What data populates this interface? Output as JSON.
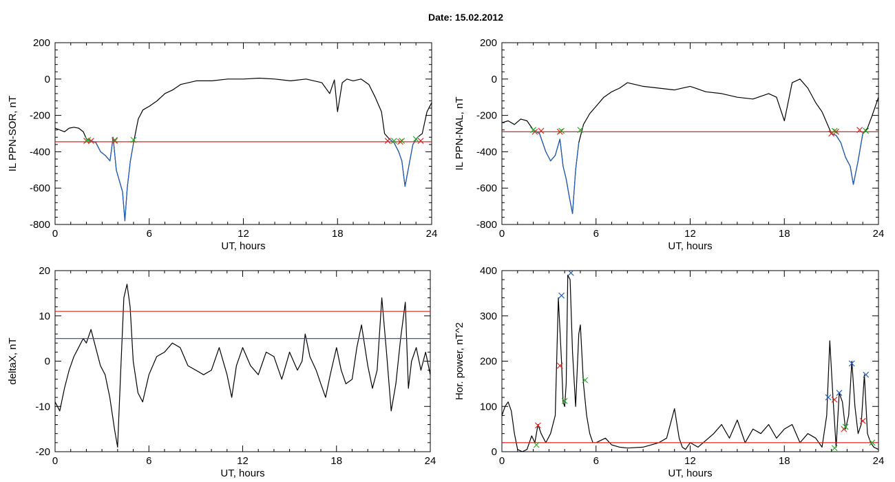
{
  "title": "Date:  15.02.2012",
  "chart_data": [
    {
      "type": "line",
      "ylabel": "IL PPN-SOR, nT",
      "xlabel": "UT, hours",
      "xlim": [
        0,
        24
      ],
      "ylim": [
        -800,
        200
      ],
      "xticks": [
        0,
        6,
        12,
        18,
        24
      ],
      "yticks": [
        -800,
        -600,
        -400,
        -200,
        0,
        200
      ],
      "series": [
        {
          "color": "#000000",
          "x": [
            0,
            0.3,
            0.6,
            0.9,
            1.2,
            1.5,
            1.8,
            2.0,
            2.3,
            2.6,
            2.9,
            3.2,
            3.5,
            3.7,
            3.9,
            4.1,
            4.3,
            4.45,
            4.6,
            4.8,
            5.0,
            5.3,
            5.6,
            6.0,
            6.5,
            7.0,
            7.5,
            8.0,
            9.0,
            10.0,
            11.0,
            12.0,
            13.0,
            14.0,
            15.0,
            16.0,
            17.0,
            17.5,
            17.8,
            18.0,
            18.3,
            18.6,
            19.0,
            19.5,
            20.0,
            20.4,
            20.8,
            21.0,
            21.3,
            21.6,
            21.9,
            22.1,
            22.3,
            22.5,
            22.8,
            23.1,
            23.4,
            23.7,
            24.0
          ],
          "y": [
            -270,
            -280,
            -290,
            -270,
            -265,
            -270,
            -290,
            -330,
            -340,
            -350,
            -400,
            -420,
            -450,
            -320,
            -500,
            -560,
            -620,
            -780,
            -600,
            -450,
            -350,
            -220,
            -170,
            -150,
            -120,
            -80,
            -60,
            -30,
            -10,
            -10,
            0,
            0,
            5,
            0,
            -10,
            0,
            -20,
            -80,
            -5,
            -180,
            -20,
            0,
            -10,
            0,
            -30,
            -100,
            -180,
            -300,
            -330,
            -350,
            -400,
            -450,
            -590,
            -500,
            -360,
            -320,
            -300,
            -180,
            -130
          ]
        },
        {
          "color": "#2060c0",
          "x": [
            2.0,
            2.3,
            2.6,
            2.9,
            3.2,
            3.5,
            3.7,
            3.9,
            4.1,
            4.3,
            4.45,
            4.6,
            4.8,
            5.0
          ],
          "y": [
            -330,
            -340,
            -350,
            -400,
            -420,
            -450,
            -320,
            -500,
            -560,
            -620,
            -780,
            -600,
            -450,
            -350
          ]
        },
        {
          "color": "#2060c0",
          "x": [
            21.3,
            21.6,
            21.9,
            22.1,
            22.3,
            22.5,
            22.8,
            23.1
          ],
          "y": [
            -330,
            -350,
            -400,
            -450,
            -590,
            -500,
            -360,
            -320
          ]
        }
      ],
      "hlines": [
        {
          "y": -345,
          "color": "#dd2222"
        }
      ],
      "markers": [
        {
          "x": 2.0,
          "y": -340,
          "color": "#dd2222"
        },
        {
          "x": 2.3,
          "y": -340,
          "color": "#dd2222"
        },
        {
          "x": 3.8,
          "y": -340,
          "color": "#dd2222"
        },
        {
          "x": 21.2,
          "y": -340,
          "color": "#dd2222"
        },
        {
          "x": 22.0,
          "y": -345,
          "color": "#dd2222"
        },
        {
          "x": 23.3,
          "y": -340,
          "color": "#dd2222"
        },
        {
          "x": 2.1,
          "y": -335,
          "color": "#22aa22"
        },
        {
          "x": 3.8,
          "y": -335,
          "color": "#22aa22"
        },
        {
          "x": 5.0,
          "y": -335,
          "color": "#22aa22"
        },
        {
          "x": 21.6,
          "y": -340,
          "color": "#22aa22"
        },
        {
          "x": 22.1,
          "y": -340,
          "color": "#22aa22"
        },
        {
          "x": 23.0,
          "y": -330,
          "color": "#22aa22"
        }
      ]
    },
    {
      "type": "line",
      "ylabel": "IL PPN-NAL, nT",
      "xlabel": "UT, hours",
      "xlim": [
        0,
        24
      ],
      "ylim": [
        -800,
        200
      ],
      "xticks": [
        0,
        6,
        12,
        18,
        24
      ],
      "yticks": [
        -800,
        -600,
        -400,
        -200,
        0,
        200
      ],
      "series": [
        {
          "color": "#000000",
          "x": [
            0,
            0.4,
            0.8,
            1.2,
            1.6,
            2.0,
            2.4,
            2.8,
            3.1,
            3.4,
            3.7,
            3.9,
            4.1,
            4.3,
            4.5,
            4.7,
            4.9,
            5.2,
            5.6,
            6.0,
            6.5,
            7.0,
            7.5,
            8.0,
            9.0,
            10.0,
            11.0,
            12.0,
            13.0,
            14.0,
            15.0,
            16.0,
            17.0,
            17.5,
            18.0,
            18.5,
            19.0,
            19.5,
            20.0,
            20.4,
            20.8,
            21.0,
            21.3,
            21.6,
            21.9,
            22.2,
            22.4,
            22.7,
            23.0,
            23.3,
            23.6,
            24.0
          ],
          "y": [
            -240,
            -230,
            -250,
            -220,
            -230,
            -280,
            -300,
            -400,
            -450,
            -420,
            -330,
            -480,
            -550,
            -650,
            -740,
            -500,
            -350,
            -250,
            -190,
            -150,
            -100,
            -70,
            -50,
            -20,
            -40,
            -50,
            -60,
            -40,
            -70,
            -80,
            -100,
            -110,
            -80,
            -100,
            -230,
            -20,
            0,
            -50,
            -130,
            -180,
            -260,
            -300,
            -310,
            -350,
            -430,
            -480,
            -580,
            -450,
            -300,
            -270,
            -200,
            -100
          ]
        },
        {
          "color": "#2060c0",
          "x": [
            2.0,
            2.4,
            2.8,
            3.1,
            3.4,
            3.7,
            3.9,
            4.1,
            4.3,
            4.5,
            4.7,
            4.9
          ],
          "y": [
            -280,
            -300,
            -400,
            -450,
            -420,
            -330,
            -480,
            -550,
            -650,
            -740,
            -500,
            -350
          ]
        },
        {
          "color": "#2060c0",
          "x": [
            21.0,
            21.3,
            21.6,
            21.9,
            22.2,
            22.4,
            22.7,
            23.0
          ],
          "y": [
            -300,
            -310,
            -350,
            -430,
            -480,
            -580,
            -450,
            -300
          ]
        }
      ],
      "hlines": [
        {
          "y": -290,
          "color": "#dd2222"
        }
      ],
      "markers": [
        {
          "x": 2.1,
          "y": -290,
          "color": "#dd2222"
        },
        {
          "x": 2.5,
          "y": -285,
          "color": "#dd2222"
        },
        {
          "x": 3.7,
          "y": -290,
          "color": "#dd2222"
        },
        {
          "x": 21.0,
          "y": -300,
          "color": "#dd2222"
        },
        {
          "x": 21.3,
          "y": -290,
          "color": "#dd2222"
        },
        {
          "x": 22.8,
          "y": -280,
          "color": "#dd2222"
        },
        {
          "x": 2.0,
          "y": -280,
          "color": "#22aa22"
        },
        {
          "x": 3.8,
          "y": -285,
          "color": "#22aa22"
        },
        {
          "x": 5.0,
          "y": -280,
          "color": "#22aa22"
        },
        {
          "x": 21.2,
          "y": -285,
          "color": "#22aa22"
        },
        {
          "x": 23.2,
          "y": -285,
          "color": "#22aa22"
        }
      ]
    },
    {
      "type": "line",
      "ylabel": "deltaX, nT",
      "xlabel": "UT, hours",
      "xlim": [
        0,
        24
      ],
      "ylim": [
        -20,
        20
      ],
      "xticks": [
        0,
        6,
        12,
        18,
        24
      ],
      "yticks": [
        -20,
        -10,
        0,
        10,
        20
      ],
      "series": [
        {
          "color": "#000000",
          "x": [
            0,
            0.3,
            0.6,
            0.9,
            1.2,
            1.5,
            1.8,
            2.0,
            2.3,
            2.6,
            2.9,
            3.2,
            3.5,
            3.8,
            4.0,
            4.2,
            4.4,
            4.6,
            4.8,
            5.0,
            5.3,
            5.6,
            6.0,
            6.5,
            7.0,
            7.5,
            8.0,
            8.5,
            9.0,
            9.5,
            10.0,
            10.5,
            11.0,
            11.3,
            11.6,
            12.0,
            12.5,
            13.0,
            13.5,
            14.0,
            14.5,
            15.0,
            15.5,
            15.8,
            16.0,
            16.3,
            16.7,
            17.0,
            17.3,
            17.6,
            18.0,
            18.3,
            18.6,
            19.0,
            19.3,
            19.6,
            20.0,
            20.3,
            20.6,
            20.9,
            21.2,
            21.5,
            21.8,
            22.1,
            22.4,
            22.6,
            22.8,
            23.1,
            23.4,
            23.7,
            24.0
          ],
          "y": [
            -9,
            -11,
            -6,
            -2,
            1,
            3,
            5,
            4,
            7,
            3,
            -1,
            -3,
            -8,
            -15,
            -19,
            -2,
            14,
            17,
            12,
            0,
            -7,
            -9,
            -3,
            1,
            2,
            4,
            3,
            -1,
            -2,
            -3,
            -2,
            3,
            -3,
            -8,
            -1,
            3,
            -1,
            -3,
            2,
            1,
            -4,
            2,
            -2,
            0,
            6,
            1,
            -2,
            -5,
            -8,
            -3,
            3,
            -2,
            -5,
            -4,
            3,
            8,
            -1,
            -6,
            -2,
            14,
            2,
            -11,
            -5,
            5,
            13,
            -6,
            0,
            3,
            -2,
            2,
            -3
          ]
        }
      ],
      "hlines": [
        {
          "y": 11,
          "color": "#dd2222"
        },
        {
          "y": 5,
          "color": "#2060c0"
        }
      ],
      "markers": []
    },
    {
      "type": "line",
      "ylabel": "Hor. power, nT^2",
      "xlabel": "UT, hours",
      "xlim": [
        0,
        24
      ],
      "ylim": [
        0,
        400
      ],
      "xticks": [
        0,
        6,
        12,
        18,
        24
      ],
      "yticks": [
        0,
        100,
        200,
        300,
        400
      ],
      "series": [
        {
          "color": "#000000",
          "x": [
            0,
            0.2,
            0.4,
            0.6,
            0.8,
            1.0,
            1.3,
            1.6,
            1.9,
            2.1,
            2.3,
            2.5,
            2.8,
            3.1,
            3.4,
            3.6,
            3.8,
            3.9,
            4.0,
            4.1,
            4.2,
            4.35,
            4.5,
            4.7,
            4.9,
            5.0,
            5.2,
            5.4,
            5.6,
            5.8,
            6.0,
            6.3,
            6.6,
            7.0,
            7.5,
            8.0,
            9.0,
            10.0,
            10.5,
            11.0,
            11.3,
            11.5,
            11.7,
            12.0,
            12.5,
            13.0,
            13.5,
            14.0,
            14.5,
            15.0,
            15.5,
            16.0,
            16.5,
            17.0,
            17.5,
            18.0,
            18.5,
            19.0,
            19.5,
            20.0,
            20.4,
            20.7,
            20.9,
            21.1,
            21.3,
            21.5,
            21.7,
            21.9,
            22.1,
            22.3,
            22.5,
            22.7,
            22.9,
            23.1,
            23.3,
            23.5,
            23.7,
            24.0
          ],
          "y": [
            80,
            100,
            110,
            90,
            40,
            5,
            0,
            5,
            35,
            20,
            60,
            40,
            20,
            40,
            80,
            340,
            200,
            110,
            100,
            150,
            390,
            380,
            220,
            100,
            260,
            280,
            150,
            80,
            40,
            20,
            20,
            25,
            30,
            15,
            10,
            8,
            10,
            20,
            30,
            95,
            30,
            10,
            5,
            20,
            10,
            25,
            40,
            60,
            30,
            70,
            20,
            50,
            40,
            60,
            30,
            50,
            60,
            20,
            40,
            30,
            10,
            80,
            245,
            120,
            10,
            130,
            110,
            50,
            80,
            200,
            100,
            40,
            60,
            170,
            40,
            20,
            10,
            5
          ]
        }
      ],
      "hlines": [
        {
          "y": 20,
          "color": "#dd2222"
        }
      ],
      "markers": [
        {
          "x": 3.8,
          "y": 345,
          "color": "#2060c0"
        },
        {
          "x": 4.4,
          "y": 395,
          "color": "#2060c0"
        },
        {
          "x": 20.8,
          "y": 120,
          "color": "#2060c0"
        },
        {
          "x": 21.5,
          "y": 130,
          "color": "#2060c0"
        },
        {
          "x": 22.3,
          "y": 195,
          "color": "#2060c0"
        },
        {
          "x": 23.2,
          "y": 170,
          "color": "#2060c0"
        },
        {
          "x": 2.3,
          "y": 58,
          "color": "#dd2222"
        },
        {
          "x": 3.7,
          "y": 190,
          "color": "#dd2222"
        },
        {
          "x": 21.2,
          "y": 115,
          "color": "#dd2222"
        },
        {
          "x": 21.8,
          "y": 50,
          "color": "#dd2222"
        },
        {
          "x": 23.0,
          "y": 68,
          "color": "#dd2222"
        },
        {
          "x": 2.2,
          "y": 15,
          "color": "#22aa22"
        },
        {
          "x": 4.0,
          "y": 112,
          "color": "#22aa22"
        },
        {
          "x": 5.3,
          "y": 158,
          "color": "#22aa22"
        },
        {
          "x": 21.2,
          "y": 8,
          "color": "#22aa22"
        },
        {
          "x": 21.9,
          "y": 55,
          "color": "#22aa22"
        },
        {
          "x": 23.6,
          "y": 20,
          "color": "#22aa22"
        }
      ]
    }
  ]
}
